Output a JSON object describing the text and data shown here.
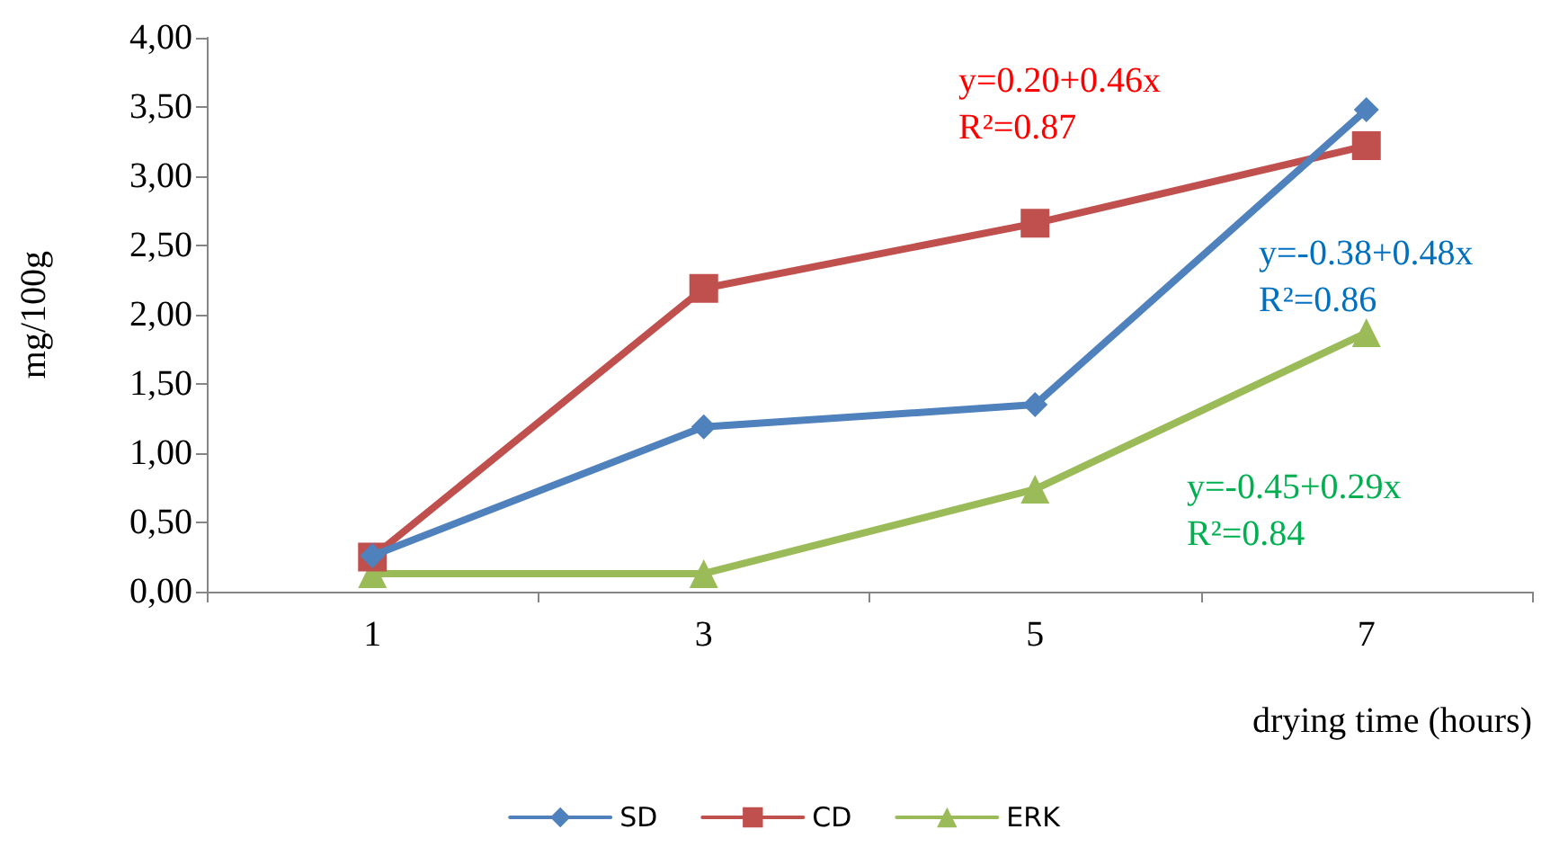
{
  "chart_data": {
    "type": "line",
    "xlabel": "drying time (hours)",
    "ylabel": "mg/100g",
    "categories": [
      "1",
      "3",
      "5",
      "7"
    ],
    "series": [
      {
        "name": "SD",
        "color": "#4f81bd",
        "marker": "diamond",
        "values": [
          0.26,
          1.19,
          1.35,
          3.48
        ]
      },
      {
        "name": "CD",
        "color": "#c0504d",
        "marker": "square",
        "values": [
          0.25,
          2.19,
          2.66,
          3.22
        ]
      },
      {
        "name": "ERK",
        "color": "#9bbb59",
        "marker": "triangle",
        "values": [
          0.13,
          0.13,
          0.74,
          1.87
        ]
      }
    ],
    "ylim": [
      0,
      4
    ],
    "yticks": [
      {
        "value": 0,
        "label": "0,00"
      },
      {
        "value": 0.5,
        "label": "0,50"
      },
      {
        "value": 1,
        "label": "1,00"
      },
      {
        "value": 1.5,
        "label": "1,50"
      },
      {
        "value": 2,
        "label": "2,00"
      },
      {
        "value": 2.5,
        "label": "2,50"
      },
      {
        "value": 3,
        "label": "3,00"
      },
      {
        "value": 3.5,
        "label": "3,50"
      },
      {
        "value": 4,
        "label": "4,00"
      }
    ],
    "annotations": [
      "y=0.20+0.46x\nR²=0.87",
      "y=-0.38+0.48x\nR²=0.86",
      "y=-0.45+0.29x\nR²=0.84"
    ],
    "grid": false,
    "legend": "bottom",
    "line_style": "solid"
  }
}
